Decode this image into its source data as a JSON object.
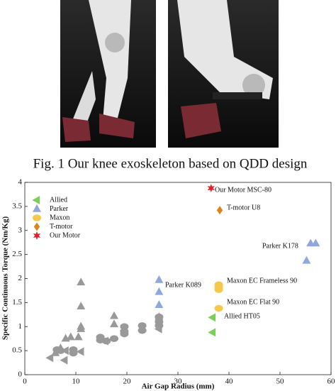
{
  "caption": "Fig. 1 Our knee exoskeleton based on QDD design",
  "chart_data": {
    "type": "scatter",
    "xlabel": "Air Gap Radius (mm)",
    "ylabel": "Specific Continuous Torque (Nm/Kg)",
    "xlim": [
      0,
      60
    ],
    "xticks": [
      0,
      10,
      20,
      30,
      40,
      50,
      60
    ],
    "ylim": [
      0,
      4
    ],
    "yticks": [
      0,
      0.5,
      1,
      1.5,
      2,
      2.5,
      3,
      3.5,
      4
    ],
    "legend": "upper left",
    "series": [
      {
        "name": "Allied",
        "color": "#7ccd5a",
        "marker": "triangle-left",
        "x": [
          36.8,
          36.8
        ],
        "y": [
          1.19,
          0.88
        ]
      },
      {
        "name": "Parker",
        "color": "#8fa8dc",
        "marker": "triangle-up",
        "x": [
          55.2,
          56,
          57,
          26.3,
          26.3,
          26.3
        ],
        "y": [
          2.37,
          2.73,
          2.73,
          1.97,
          1.72,
          1.45
        ]
      },
      {
        "name": "Maxon",
        "color": "#f5c84c",
        "marker": "circle",
        "x": [
          38,
          38,
          38,
          38
        ],
        "y": [
          1.87,
          1.82,
          1.77,
          1.38
        ]
      },
      {
        "name": "T-motor",
        "color": "#d9861c",
        "marker": "diamond",
        "x": [
          38.2
        ],
        "y": [
          3.42
        ]
      },
      {
        "name": "Our Motor",
        "color": "#e0202a",
        "marker": "star",
        "x": [
          36.5
        ],
        "y": [
          3.88
        ]
      },
      {
        "color": "#999999",
        "marker": "triangle-up",
        "x": [
          11,
          11,
          11,
          10.5,
          17.5,
          17.5,
          9,
          8,
          6,
          7,
          11,
          26.3
        ],
        "y": [
          1.92,
          1.42,
          1.0,
          0.78,
          1.22,
          1.05,
          0.78,
          0.75,
          0.45,
          0.55,
          0.95,
          1.2
        ]
      },
      {
        "color": "#999999",
        "marker": "circle",
        "x": [
          6.3,
          7,
          9.5,
          9.5,
          14.8,
          14.8,
          16,
          17.5,
          19.5,
          19.5,
          19.5,
          23,
          23,
          26.3,
          26.3,
          26.3
        ],
        "y": [
          0.52,
          0.5,
          0.52,
          0.45,
          0.72,
          0.78,
          0.7,
          0.75,
          0.9,
          1.0,
          0.85,
          1.02,
          0.92,
          1.02,
          1.1,
          1.2
        ]
      },
      {
        "color": "#999999",
        "marker": "triangle-left",
        "x": [
          5,
          7.8,
          8,
          11,
          15.8,
          26.3,
          19.5
        ],
        "y": [
          0.35,
          0.3,
          0.5,
          0.48,
          0.7,
          0.95,
          0.92
        ]
      }
    ],
    "annotations": [
      "Our Motor MSC-80",
      "T-motor U8",
      "Parker K178",
      "Parker K089",
      "Maxon EC Frameless 90",
      "Maxon EC Flat 90",
      "Allied HT05"
    ]
  }
}
